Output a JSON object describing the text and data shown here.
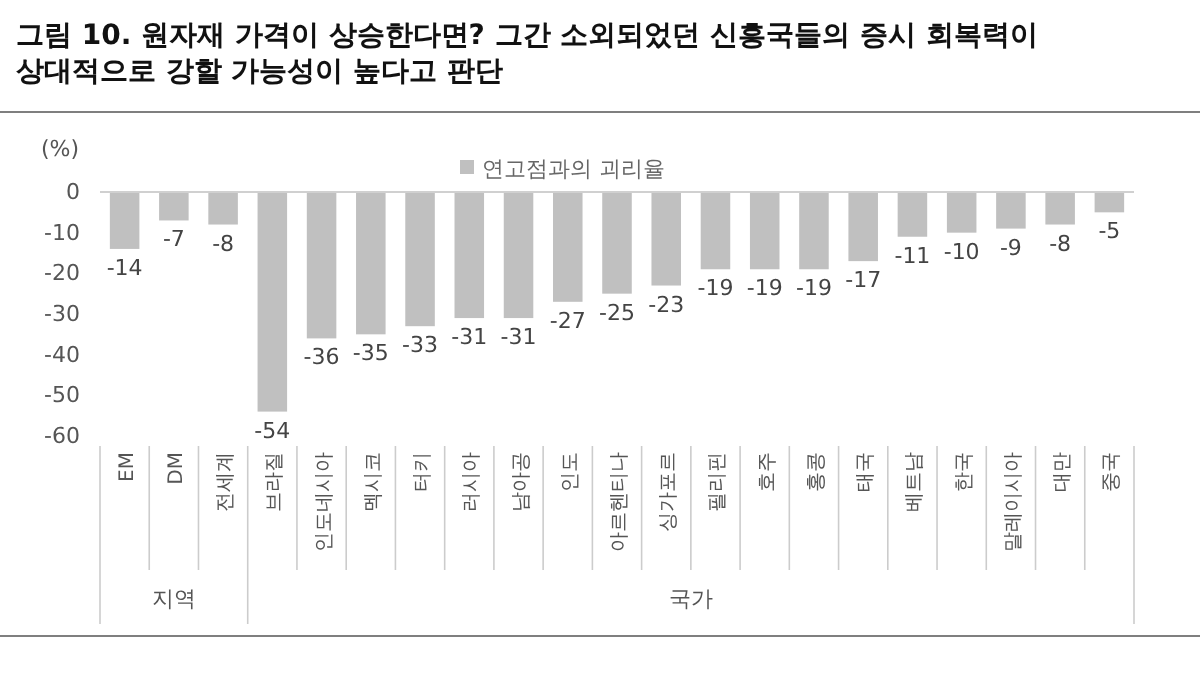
{
  "chart_data": {
    "type": "bar",
    "title": "그림 10. 원자재 가격이 상승한다면? 그간 소외되었던 신흥국들의 증시 회복력이 상대적으로 강할 가능성이 높다고 판단",
    "ylabel": "(%)",
    "categories": [
      "EM",
      "DM",
      "전세계",
      "브라질",
      "인도네시아",
      "멕시코",
      "터키",
      "러시아",
      "남아공",
      "인도",
      "아르헨티나",
      "싱가포르",
      "필리핀",
      "호주",
      "홍콩",
      "태국",
      "베트남",
      "한국",
      "말레이시아",
      "대만",
      "중국"
    ],
    "series": [
      {
        "name": "연고점과의 괴리율",
        "color": "#c0c0c0",
        "values": [
          -14,
          -7,
          -8,
          -54,
          -36,
          -35,
          -33,
          -31,
          -31,
          -27,
          -25,
          -23,
          -19,
          -19,
          -19,
          -17,
          -11,
          -10,
          -9,
          -8,
          -5
        ]
      }
    ],
    "ylim": [
      -60,
      0
    ],
    "yticks": [
      0,
      -10,
      -20,
      -30,
      -40,
      -50,
      -60
    ],
    "data_labels": true,
    "legend": "top",
    "grid": false,
    "annotations": [
      "지역",
      "국가"
    ]
  }
}
